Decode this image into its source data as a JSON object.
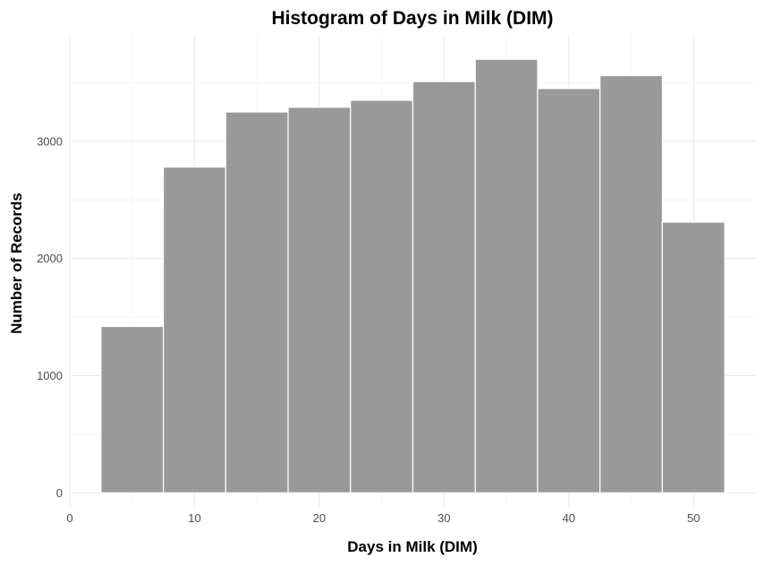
{
  "chart_data": {
    "type": "bar",
    "title": "Histogram of Days in Milk (DIM)",
    "xlabel": "Days in Milk (DIM)",
    "ylabel": "Number of Records",
    "xlim": [
      0,
      55
    ],
    "ylim": [
      -120,
      3900
    ],
    "x_ticks": [
      0,
      10,
      20,
      30,
      40,
      50
    ],
    "y_ticks": [
      0,
      1000,
      2000,
      3000
    ],
    "bins": [
      {
        "start": 2.5,
        "end": 7.5,
        "value": 1420
      },
      {
        "start": 7.5,
        "end": 12.5,
        "value": 2780
      },
      {
        "start": 12.5,
        "end": 17.5,
        "value": 3250
      },
      {
        "start": 17.5,
        "end": 22.5,
        "value": 3290
      },
      {
        "start": 22.5,
        "end": 27.5,
        "value": 3350
      },
      {
        "start": 27.5,
        "end": 32.5,
        "value": 3510
      },
      {
        "start": 32.5,
        "end": 37.5,
        "value": 3700
      },
      {
        "start": 37.5,
        "end": 42.5,
        "value": 3450
      },
      {
        "start": 42.5,
        "end": 47.5,
        "value": 3560
      },
      {
        "start": 47.5,
        "end": 52.5,
        "value": 2310
      }
    ],
    "bar_fill": "#999999",
    "bar_stroke": "#ffffff",
    "grid": true
  }
}
